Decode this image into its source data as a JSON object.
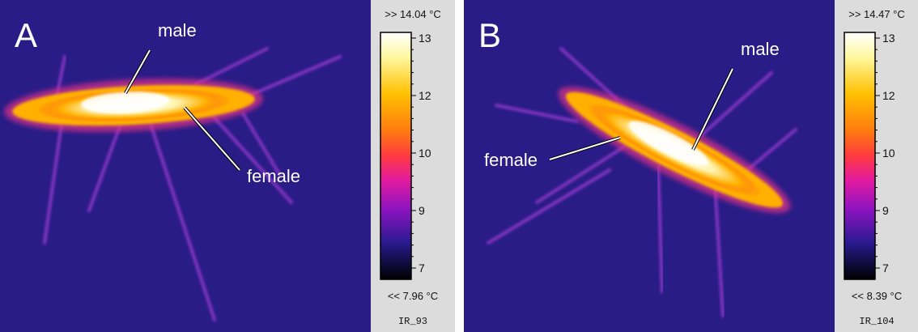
{
  "panels": [
    {
      "letter": "A",
      "annotations": [
        "male",
        "female"
      ],
      "scale_max": ">> 14.04 °C",
      "scale_ticks": [
        13,
        12,
        10,
        9,
        7
      ],
      "scale_min": "<< 7.96 °C",
      "image_id": "IR_93"
    },
    {
      "letter": "B",
      "annotations": [
        "male",
        "female"
      ],
      "scale_max": ">> 14.47 °C",
      "scale_ticks": [
        13,
        12,
        10,
        9,
        7
      ],
      "scale_min": "<< 8.39 °C",
      "image_id": "IR_104"
    }
  ]
}
